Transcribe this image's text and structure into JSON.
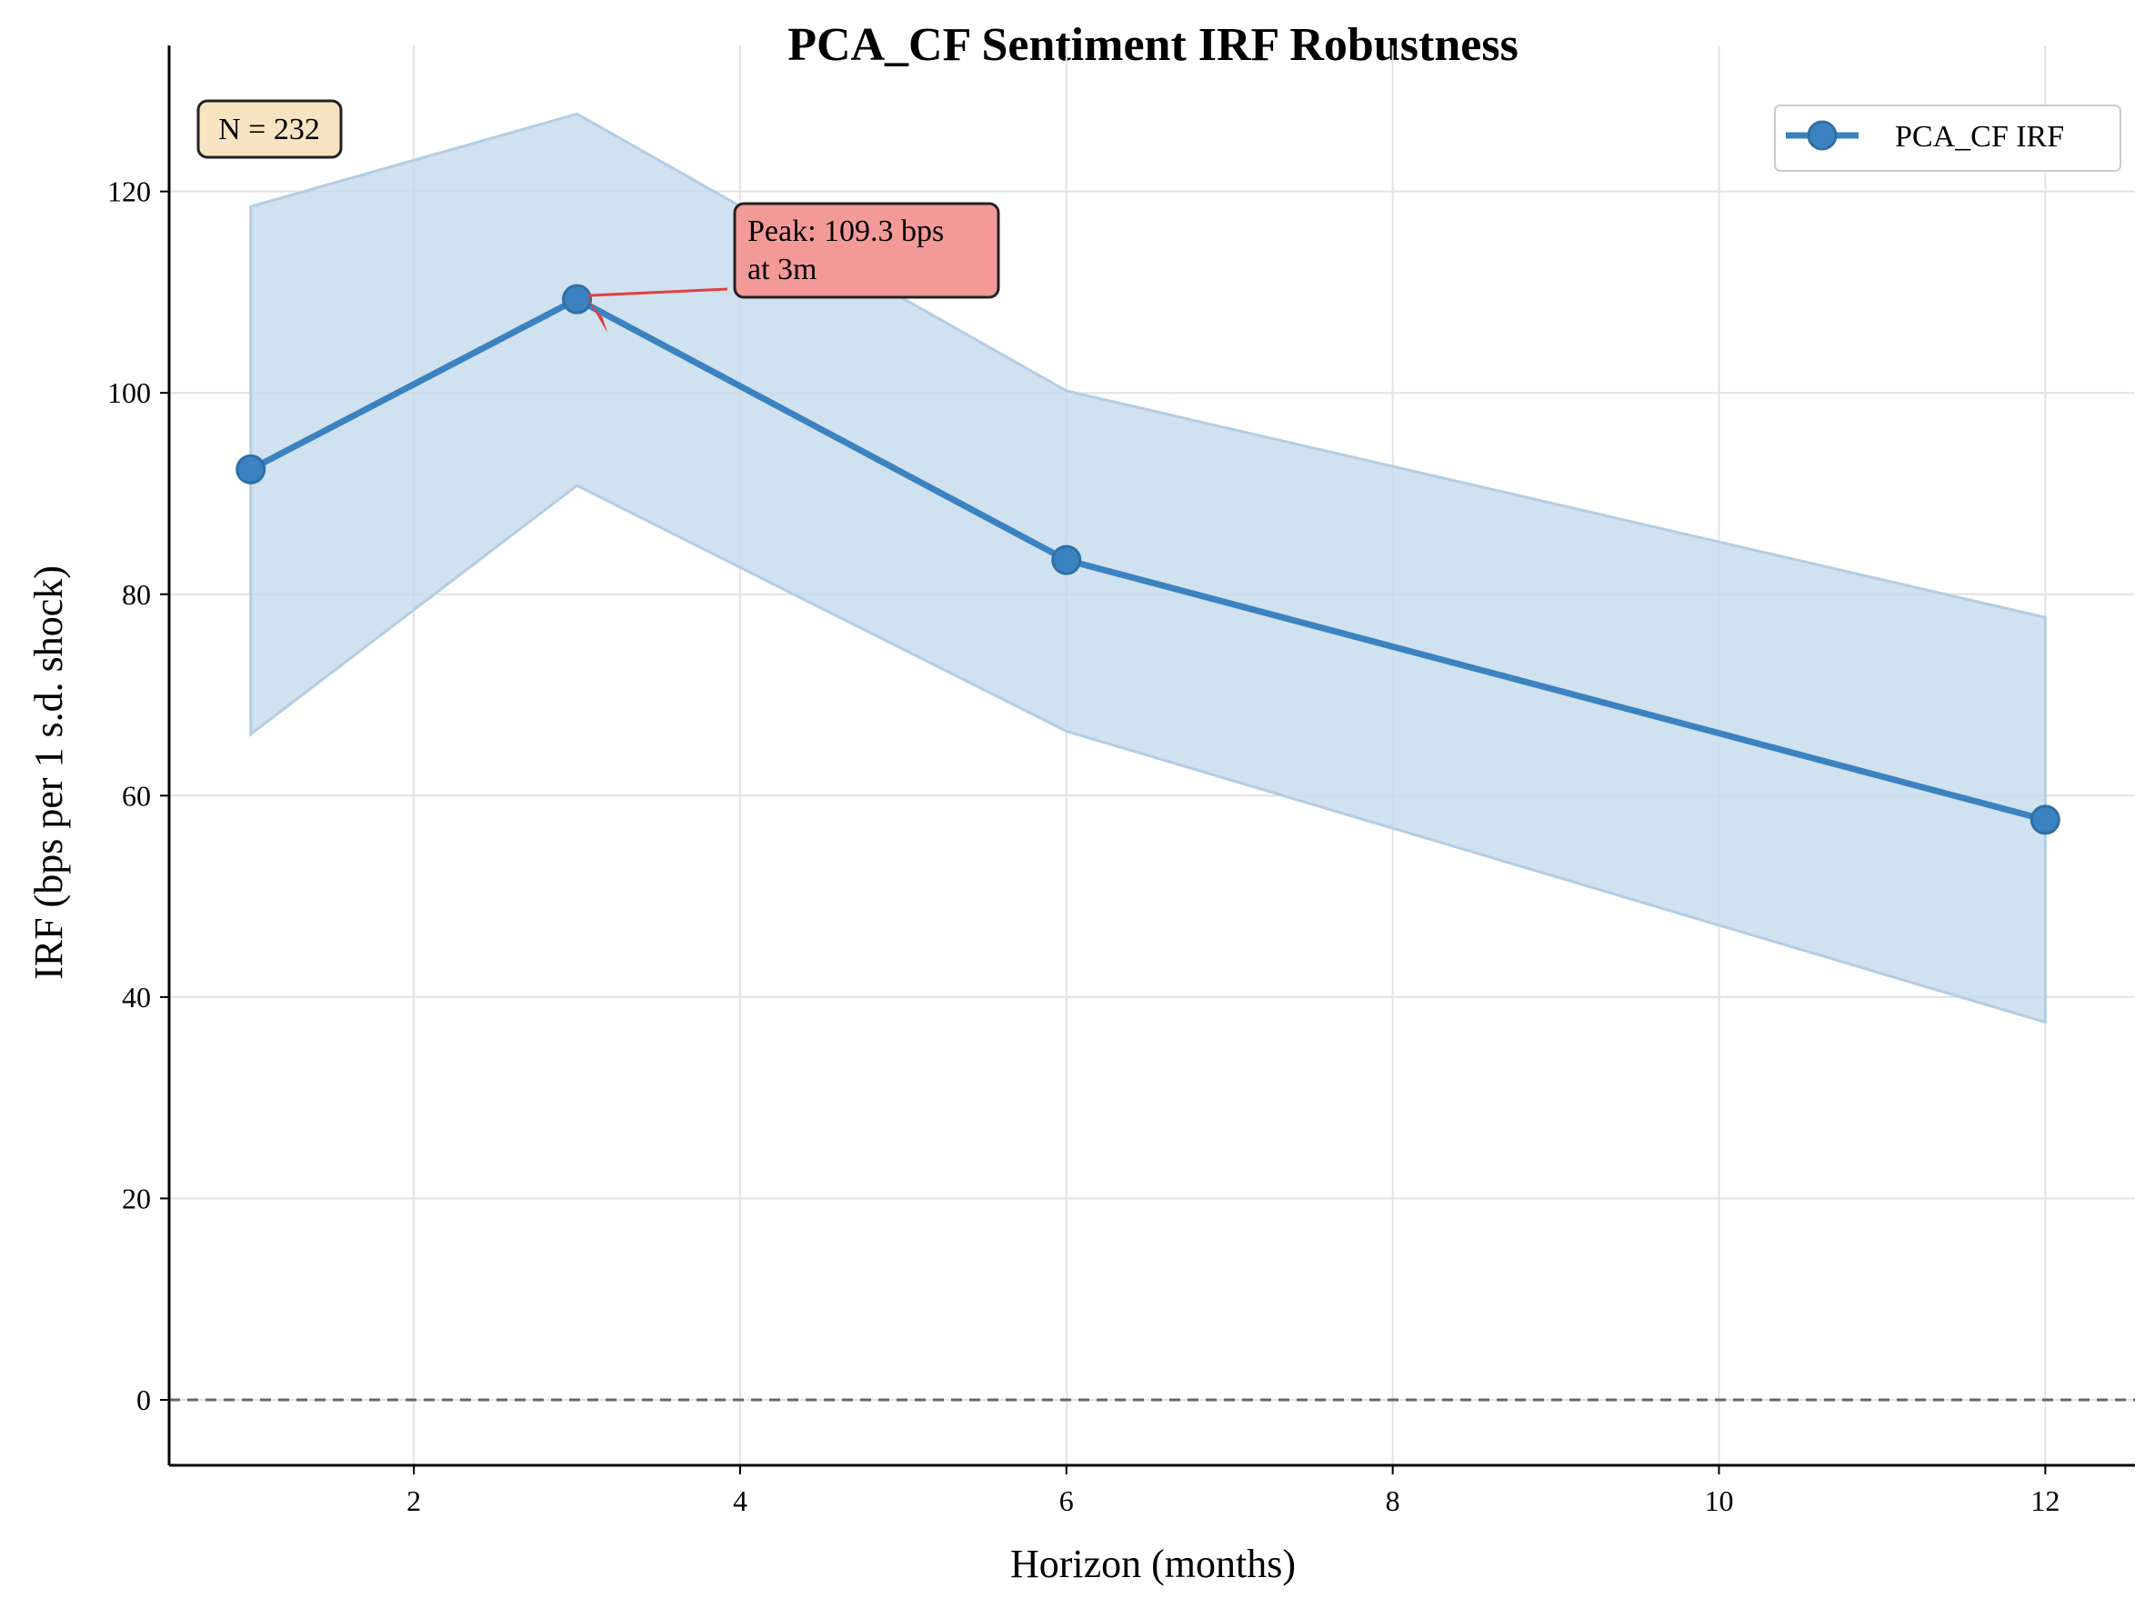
{
  "chart_data": {
    "type": "line",
    "title": "PCA_CF Sentiment IRF Robustness",
    "xlabel": "Horizon (months)",
    "ylabel": "IRF (bps per 1 s.d. shock)",
    "x": [
      1,
      3,
      6,
      12
    ],
    "series": [
      {
        "name": "PCA_CF IRF",
        "values": [
          92.4,
          109.3,
          83.4,
          57.6
        ],
        "lower": [
          66.1,
          90.8,
          66.4,
          37.5
        ],
        "upper": [
          118.5,
          127.7,
          100.2,
          77.7
        ],
        "color": "#3b82c0",
        "band_color": "#c4d9eb"
      }
    ],
    "xlim": [
      0.5,
      12.55
    ],
    "ylim": [
      -6.5,
      134.5
    ],
    "xticks": [
      2,
      4,
      6,
      8,
      10,
      12
    ],
    "yticks": [
      0,
      20,
      40,
      60,
      80,
      100,
      120
    ],
    "grid": true,
    "zero_line": {
      "y": 0,
      "style": "dashed",
      "color": "#666666"
    },
    "legend": {
      "position": "top-right",
      "label": "PCA_CF IRF"
    },
    "annotations": [
      {
        "text_lines": [
          "Peak: 109.3 bps",
          "at 3m"
        ],
        "x": 3,
        "y": 109.3,
        "box_color": "#f39a99",
        "arrow_color": "#e04040"
      },
      {
        "text": "N = 232",
        "position": "top-left",
        "box_color": "#f8e4c3"
      }
    ]
  }
}
